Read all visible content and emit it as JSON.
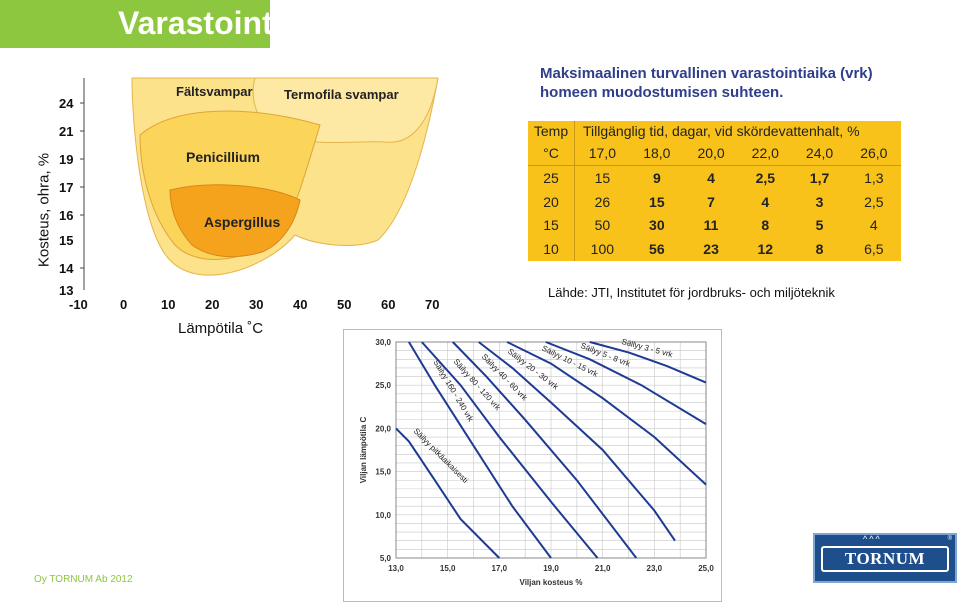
{
  "slide": {
    "title": "Varastointi",
    "footer": "Oy TORNUM Ab 2012"
  },
  "fungal_chart": {
    "ylabel": "Kosteus, ohra, %",
    "xlabel": "Lämpötila ˚C",
    "x_ticks": [
      "-10",
      "0",
      "10",
      "20",
      "30",
      "40",
      "50",
      "60",
      "70"
    ],
    "y_ticks": [
      "24",
      "21",
      "19",
      "17",
      "16",
      "15",
      "14",
      "13"
    ],
    "regions": [
      "Fältsvampar",
      "Termofila svampar",
      "Penicillium",
      "Aspergillus"
    ],
    "colors": {
      "light": "#fce28a",
      "mid": "#fbd45a",
      "orange": "#f9b233",
      "deep": "#f5a31d"
    }
  },
  "storage_table": {
    "title": "Maksimaalinen turvallinen varastointiaika (vrk) homeen muodostumisen suhteen.",
    "header_col1": "Temp",
    "header_caption": "Tillgänglig tid, dagar, vid skördevattenhalt, %",
    "unit": "°C",
    "moisture_cols": [
      "17,0",
      "18,0",
      "20,0",
      "22,0",
      "24,0",
      "26,0"
    ],
    "rows": [
      {
        "temp": "25",
        "values": [
          "15",
          "9",
          "4",
          "2,5",
          "1,7",
          "1,3"
        ]
      },
      {
        "temp": "20",
        "values": [
          "26",
          "15",
          "7",
          "4",
          "3",
          "2,5"
        ]
      },
      {
        "temp": "15",
        "values": [
          "50",
          "30",
          "11",
          "8",
          "5",
          "4"
        ]
      },
      {
        "temp": "10",
        "values": [
          "100",
          "56",
          "23",
          "12",
          "8",
          "6,5"
        ]
      }
    ],
    "bg_color": "#f9c21a",
    "source": "Lähde: JTI, Institutet för jordbruks- och miljöteknik"
  },
  "chart_data": {
    "type": "line",
    "xlabel": "Viljan kosteus %",
    "ylabel": "Viljan lämpötila C",
    "x_ticks": [
      "13,0",
      "15,0",
      "17,0",
      "19,0",
      "21,0",
      "23,0",
      "25,0"
    ],
    "y_ticks": [
      "30,0",
      "25,0",
      "20,0",
      "15,0",
      "10,0",
      "5,0"
    ],
    "xlim": [
      13,
      25
    ],
    "ylim": [
      5,
      30
    ],
    "grid": true,
    "series": [
      {
        "name": "Säilyy pitkäaikaisesti",
        "x": [
          13.0,
          13.5,
          14.5,
          15.5,
          17.0
        ],
        "y": [
          20.0,
          18.5,
          14.0,
          9.5,
          5.0
        ]
      },
      {
        "name": "Säilyy 160 - 240 vrk",
        "x": [
          13.5,
          14.5,
          16.0,
          17.5,
          19.0
        ],
        "y": [
          30.0,
          25.0,
          18.0,
          11.0,
          5.0
        ]
      },
      {
        "name": "Säilyy 80 - 120 vrk",
        "x": [
          14.0,
          15.5,
          17.0,
          19.0,
          20.8
        ],
        "y": [
          30.0,
          25.0,
          19.0,
          11.5,
          5.0
        ]
      },
      {
        "name": "Säilyy 40 - 60 vrk",
        "x": [
          15.2,
          16.5,
          18.0,
          20.0,
          22.3
        ],
        "y": [
          30.0,
          26.0,
          21.0,
          14.0,
          5.0
        ]
      },
      {
        "name": "Säilyy 20 - 30 vrk",
        "x": [
          16.2,
          17.5,
          19.0,
          21.0,
          23.0,
          23.8
        ],
        "y": [
          30.0,
          27.0,
          23.0,
          17.5,
          10.5,
          7.0
        ]
      },
      {
        "name": "Säilyy 10 - 15 vrk",
        "x": [
          17.3,
          19.0,
          21.0,
          23.0,
          25.0
        ],
        "y": [
          30.0,
          27.5,
          23.5,
          19.0,
          13.5
        ]
      },
      {
        "name": "Säilyy 5 - 8 vrk",
        "x": [
          18.8,
          20.5,
          22.5,
          25.0
        ],
        "y": [
          30.0,
          28.0,
          25.0,
          20.5
        ]
      },
      {
        "name": "Säilyy 3 - 5 vrk",
        "x": [
          20.5,
          22.0,
          23.5,
          25.0
        ],
        "y": [
          30.0,
          28.8,
          27.2,
          25.3
        ]
      }
    ],
    "line_color": "#1f3a93",
    "grid_color": "#c8c8c8"
  },
  "logo": {
    "text": "TORNUM",
    "birds": "^^^",
    "reg": "®",
    "colors": {
      "bg": "#1f4e8c",
      "border": "#7fa6d6"
    }
  }
}
